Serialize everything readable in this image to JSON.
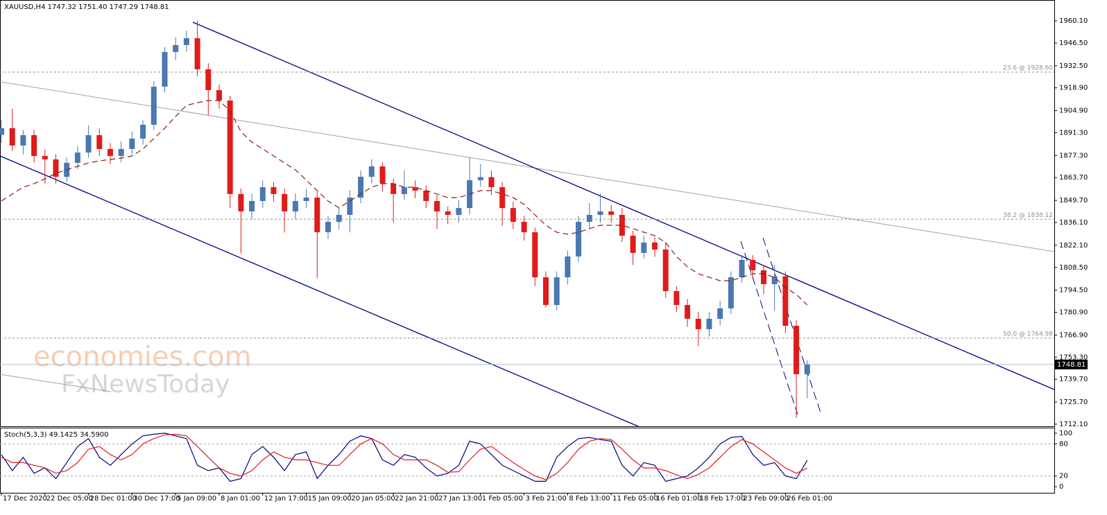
{
  "chart_data": [
    {
      "type": "candlestick",
      "title": "XAUUSD,H4  1747.32 1751.40 1747.29 1748.81",
      "xlim": [
        -0.127,
        96.69
      ],
      "xticks": [
        {
          "value": 0,
          "label": "17 Dec 2020"
        },
        {
          "value": 4,
          "label": "22 Dec 05:00"
        },
        {
          "value": 8,
          "label": "28 Dec 01:00"
        },
        {
          "value": 12,
          "label": "30 Dec 17:00"
        },
        {
          "value": 16,
          "label": "5 Jan 09:00"
        },
        {
          "value": 20,
          "label": "8 Jan 01:00"
        },
        {
          "value": 24,
          "label": "12 Jan 17:00"
        },
        {
          "value": 28,
          "label": "15 Jan 09:00"
        },
        {
          "value": 32,
          "label": "20 Jan 05:00"
        },
        {
          "value": 36,
          "label": "22 Jan 21:00"
        },
        {
          "value": 40,
          "label": "27 Jan 13:00"
        },
        {
          "value": 44,
          "label": "1 Feb 05:00"
        },
        {
          "value": 48,
          "label": "3 Feb 21:00"
        },
        {
          "value": 52,
          "label": "8 Feb 13:00"
        },
        {
          "value": 56,
          "label": "11 Feb 05:00"
        },
        {
          "value": 60,
          "label": "16 Feb 01:00"
        },
        {
          "value": 64,
          "label": "18 Feb 17:00"
        },
        {
          "value": 68,
          "label": "23 Feb 09:00"
        },
        {
          "value": 72,
          "label": "26 Feb 01:00"
        }
      ],
      "ylim": [
        1710.8,
        1972.9
      ],
      "yticks": [
        {
          "value": 1960.1,
          "label": "1960.10"
        },
        {
          "value": 1946.5,
          "label": "1946.50"
        },
        {
          "value": 1932.5,
          "label": "1932.50"
        },
        {
          "value": 1918.9,
          "label": "1918.90"
        },
        {
          "value": 1904.9,
          "label": "1904.90"
        },
        {
          "value": 1891.3,
          "label": "1891.30"
        },
        {
          "value": 1877.3,
          "label": "1877.30"
        },
        {
          "value": 1863.7,
          "label": "1863.70"
        },
        {
          "value": 1849.7,
          "label": "1849.70"
        },
        {
          "value": 1836.1,
          "label": "1836.10"
        },
        {
          "value": 1822.1,
          "label": "1822.10"
        },
        {
          "value": 1808.5,
          "label": "1808.50"
        },
        {
          "value": 1794.5,
          "label": "1794.50"
        },
        {
          "value": 1780.9,
          "label": "1780.90"
        },
        {
          "value": 1766.9,
          "label": "1766.90"
        },
        {
          "value": 1753.3,
          "label": "1753.30"
        },
        {
          "value": 1739.7,
          "label": "1739.70"
        },
        {
          "value": 1725.7,
          "label": "1725.70"
        },
        {
          "value": 1712.1,
          "label": "1712.10"
        }
      ],
      "up_color": "#4a78b0",
      "down_color": "#e01b1b",
      "open": [
        1890.0,
        1894.1,
        1883.4,
        1889.8,
        1877.0,
        1874.9,
        1864.2,
        1872.8,
        1879.1,
        1889.8,
        1881.3,
        1877.0,
        1881.3,
        1887.7,
        1896.2,
        1919.6,
        1940.9,
        1945.2,
        1949.4,
        1930.3,
        1917.5,
        1911.1,
        1853.6,
        1842.9,
        1849.3,
        1857.8,
        1853.6,
        1842.9,
        1849.3,
        1851.4,
        1830.1,
        1836.5,
        1840.8,
        1851.4,
        1864.2,
        1870.6,
        1860.0,
        1853.6,
        1857.8,
        1855.7,
        1849.3,
        1842.9,
        1840.8,
        1845.0,
        1862.1,
        1864.0,
        1857.8,
        1845.0,
        1836.5,
        1830.1,
        1802.4,
        1785.4,
        1802.4,
        1815.2,
        1836.5,
        1840.8,
        1842.9,
        1840.8,
        1828.0,
        1817.4,
        1823.8,
        1819.5,
        1793.9,
        1785.4,
        1776.9,
        1770.5,
        1776.9,
        1783.3,
        1802.4,
        1813.1,
        1806.7,
        1798.2,
        1803.0,
        1772.6,
        1742.8
      ],
      "high": [
        1899,
        1906,
        1893,
        1893,
        1881,
        1878,
        1876,
        1883,
        1896,
        1894,
        1885,
        1886,
        1892,
        1899,
        1923,
        1944,
        1950,
        1954,
        1960.1,
        1934,
        1921,
        1914,
        1857,
        1854,
        1862,
        1861,
        1857,
        1854,
        1857,
        1855,
        1840,
        1845,
        1856,
        1868,
        1875,
        1873,
        1863,
        1868,
        1862,
        1859,
        1853,
        1846,
        1850,
        1876,
        1872,
        1868,
        1861,
        1849,
        1840,
        1833,
        1806,
        1806,
        1819,
        1840,
        1848,
        1854,
        1847,
        1845,
        1831,
        1828,
        1827,
        1824,
        1797,
        1789,
        1781,
        1781,
        1788,
        1806,
        1816,
        1816,
        1810,
        1810,
        1806,
        1776,
        1751.4
      ],
      "low": [
        1885,
        1880,
        1878,
        1873,
        1860,
        1860,
        1861,
        1869,
        1876,
        1877,
        1872,
        1873,
        1878,
        1884,
        1893,
        1916,
        1936,
        1941,
        1926,
        1902,
        1906,
        1845,
        1817,
        1838,
        1845,
        1849,
        1830,
        1838,
        1845,
        1802,
        1826,
        1832,
        1830,
        1848,
        1860,
        1855,
        1836,
        1850,
        1851,
        1845,
        1832,
        1835,
        1836,
        1841,
        1858,
        1853,
        1834,
        1832,
        1825,
        1797,
        1784,
        1782,
        1798,
        1812,
        1832,
        1836,
        1836,
        1824,
        1810,
        1814,
        1815,
        1790,
        1781,
        1772,
        1760,
        1766,
        1773,
        1780,
        1799,
        1802,
        1792,
        1782,
        1768,
        1716,
        1728
      ],
      "close": [
        1894.1,
        1883.4,
        1889.8,
        1877.0,
        1874.9,
        1864.2,
        1872.8,
        1879.1,
        1889.8,
        1881.3,
        1877.0,
        1881.3,
        1887.7,
        1896.2,
        1919.6,
        1940.9,
        1945.2,
        1949.4,
        1930.3,
        1917.5,
        1911.1,
        1853.6,
        1842.9,
        1849.3,
        1857.8,
        1853.6,
        1842.9,
        1849.3,
        1851.4,
        1830.1,
        1836.5,
        1840.8,
        1851.4,
        1864.2,
        1870.6,
        1860.0,
        1853.6,
        1857.8,
        1855.7,
        1849.3,
        1842.9,
        1840.8,
        1845.0,
        1862.1,
        1864.0,
        1857.8,
        1845.0,
        1836.5,
        1830.1,
        1802.4,
        1785.4,
        1802.4,
        1815.2,
        1836.5,
        1840.8,
        1842.9,
        1840.8,
        1828.0,
        1817.4,
        1823.8,
        1819.5,
        1793.9,
        1785.4,
        1776.9,
        1770.5,
        1776.9,
        1783.3,
        1802.4,
        1813.1,
        1806.7,
        1798.2,
        1803.0,
        1772.6,
        1742.8,
        1748.81
      ],
      "ma": {
        "color": "#8b1a1a",
        "values": [
          1849.3,
          1853.6,
          1857.8,
          1860.0,
          1862.9,
          1866.3,
          1868.5,
          1870.6,
          1872.7,
          1874.0,
          1874.9,
          1875.7,
          1877.0,
          1881.3,
          1887.7,
          1894.1,
          1901.3,
          1908.1,
          1909.8,
          1911.1,
          1911.1,
          1904.7,
          1891.9,
          1885.5,
          1881.3,
          1877.0,
          1872.7,
          1868.5,
          1862.1,
          1855.7,
          1849.3,
          1845.1,
          1849.3,
          1853.6,
          1857.8,
          1860.0,
          1860.0,
          1857.8,
          1857.8,
          1855.7,
          1853.6,
          1851.4,
          1851.4,
          1853.6,
          1855.7,
          1855.7,
          1853.6,
          1851.4,
          1847.2,
          1840.8,
          1834.4,
          1830.1,
          1828.9,
          1830.1,
          1832.3,
          1834.4,
          1834.4,
          1834.4,
          1832.3,
          1830.1,
          1828.0,
          1823.8,
          1815.2,
          1808.8,
          1804.6,
          1802.4,
          1800.3,
          1800.3,
          1802.4,
          1804.6,
          1804.6,
          1802.4,
          1796.1,
          1791.8,
          1785.4
        ]
      },
      "levels": [
        {
          "value": 1928.6,
          "label": "23.6 @ 1928.60"
        },
        {
          "value": 1838.12,
          "label": "38.2 @ 1838.12"
        },
        {
          "value": 1764.98,
          "label": "50.0 @ 1764.98"
        }
      ],
      "last_price": 1748.81,
      "watermark": [
        "economies.com",
        "FxNewsToday"
      ]
    },
    {
      "type": "line",
      "title": "Stoch(5,3,3) 49.1425 34.5900",
      "ylim": [
        -11.5,
        110.3
      ],
      "yticks": [
        0,
        20,
        80,
        100
      ],
      "series": [
        {
          "color": "#000080",
          "values": [
            60,
            30,
            55,
            25,
            35,
            15,
            45,
            75,
            90,
            55,
            40,
            60,
            80,
            95,
            98,
            100,
            95,
            90,
            40,
            30,
            35,
            10,
            15,
            60,
            75,
            55,
            30,
            60,
            65,
            15,
            40,
            60,
            85,
            95,
            90,
            50,
            40,
            60,
            55,
            35,
            20,
            25,
            40,
            85,
            80,
            60,
            40,
            30,
            20,
            10,
            10,
            55,
            75,
            90,
            92,
            88,
            85,
            40,
            20,
            45,
            40,
            10,
            15,
            20,
            35,
            55,
            80,
            92,
            94,
            60,
            40,
            45,
            20,
            15,
            49.1425
          ]
        },
        {
          "color": "#e01b1b",
          "values": [
            55,
            45,
            45,
            40,
            35,
            25,
            30,
            45,
            70,
            75,
            60,
            50,
            60,
            80,
            90,
            97,
            98,
            95,
            75,
            55,
            35,
            25,
            20,
            30,
            50,
            65,
            55,
            50,
            50,
            45,
            40,
            40,
            60,
            80,
            90,
            80,
            60,
            50,
            50,
            50,
            40,
            27,
            28,
            50,
            70,
            75,
            60,
            45,
            32,
            20,
            13,
            25,
            45,
            70,
            85,
            90,
            88,
            70,
            50,
            35,
            35,
            30,
            22,
            15,
            23,
            35,
            55,
            75,
            88,
            80,
            65,
            50,
            35,
            25,
            34.59
          ]
        }
      ]
    }
  ]
}
